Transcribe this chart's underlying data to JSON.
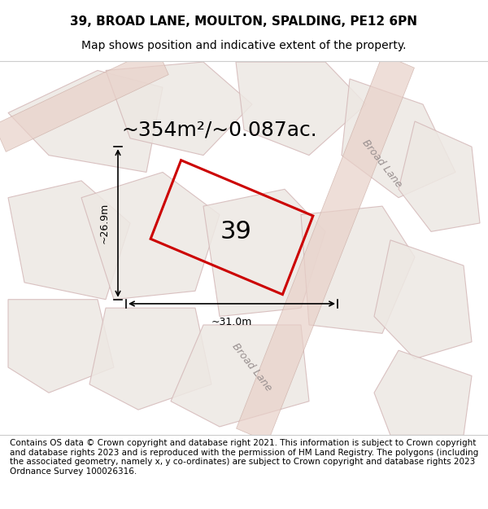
{
  "title": "39, BROAD LANE, MOULTON, SPALDING, PE12 6PN",
  "subtitle": "Map shows position and indicative extent of the property.",
  "area_text": "~354m²/~0.087ac.",
  "label_39": "39",
  "dim_width": "~31.0m",
  "dim_height": "~26.9m",
  "footer": "Contains OS data © Crown copyright and database right 2021. This information is subject to Crown copyright and database rights 2023 and is reproduced with the permission of HM Land Registry. The polygons (including the associated geometry, namely x, y co-ordinates) are subject to Crown copyright and database rights 2023 Ordnance Survey 100026316.",
  "bg_color": "#f5f5f5",
  "map_bg": "#f0ede8",
  "plot_fill": "none",
  "plot_edge": "#cc0000",
  "road_label": "Broad Lane",
  "road_label2": "Broad Lane",
  "parcel_color": "#e8d8d8",
  "road_color": "#e0c8c8",
  "title_fontsize": 11,
  "subtitle_fontsize": 10,
  "area_fontsize": 18,
  "label_fontsize": 22,
  "footer_fontsize": 7.5
}
